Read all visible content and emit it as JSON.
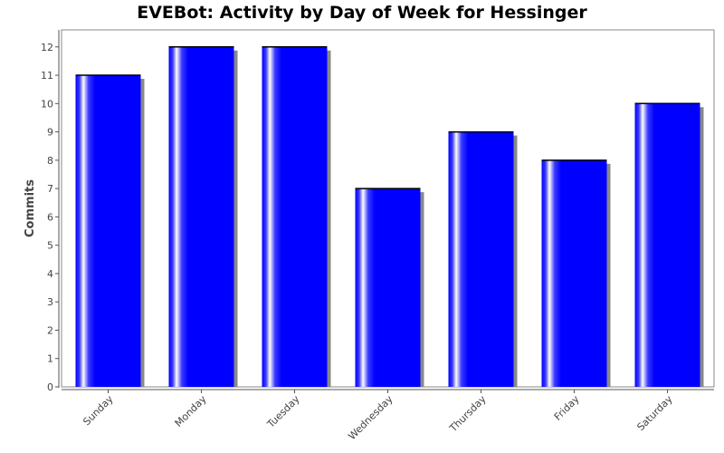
{
  "chart_data": {
    "type": "bar",
    "title": "EVEBot: Activity by Day of Week for Hessinger",
    "xlabel": "",
    "ylabel": "Commits",
    "categories": [
      "Sunday",
      "Monday",
      "Tuesday",
      "Wednesday",
      "Thursday",
      "Friday",
      "Saturday"
    ],
    "values": [
      11,
      12,
      12,
      7,
      9,
      8,
      10
    ],
    "ylim": [
      0,
      12.6
    ],
    "yticks": [
      0,
      1,
      2,
      3,
      4,
      5,
      6,
      7,
      8,
      9,
      10,
      11,
      12
    ],
    "grid": false,
    "legend": "none",
    "colors": {
      "bar": "#0000ff",
      "bar_highlight": "#ffffff",
      "bar_shadow": "#888888",
      "plot_border": "#888888",
      "axis": "#555555"
    }
  }
}
